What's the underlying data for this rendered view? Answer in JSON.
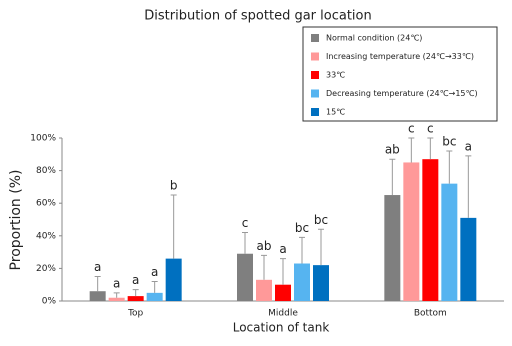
{
  "chart_data": {
    "type": "bar",
    "title": "Distribution of spotted gar location",
    "x_label": "Location of tank",
    "y_label": "Proportion (%)",
    "categories": [
      "Top",
      "Middle",
      "Bottom"
    ],
    "ylim": [
      0,
      100
    ],
    "yticks": [
      {
        "value": 0,
        "label": "0%"
      },
      {
        "value": 20,
        "label": "20%"
      },
      {
        "value": 40,
        "label": "40%"
      },
      {
        "value": 60,
        "label": "60%"
      },
      {
        "value": 80,
        "label": "80%"
      },
      {
        "value": 100,
        "label": "100%"
      }
    ],
    "series": [
      {
        "name": "Normal condition (24℃)",
        "color": "#7f7f7f",
        "values": [
          6,
          29,
          65
        ],
        "errors": [
          9,
          13,
          22
        ],
        "letters": [
          "a",
          "c",
          "ab"
        ]
      },
      {
        "name": "Increasing temperature (24℃→33℃)",
        "color": "#ff9999",
        "values": [
          2,
          13,
          85
        ],
        "errors": [
          3,
          15,
          15
        ],
        "letters": [
          "a",
          "ab",
          "c"
        ]
      },
      {
        "name": "33℃",
        "color": "#ff0000",
        "values": [
          3,
          10,
          87
        ],
        "errors": [
          4,
          16,
          13
        ],
        "letters": [
          "a",
          "a",
          "c"
        ]
      },
      {
        "name": "Decreasing temperature (24℃→15℃)",
        "color": "#56b4f0",
        "values": [
          5,
          23,
          72
        ],
        "errors": [
          7,
          16,
          20
        ],
        "letters": [
          "a",
          "bc",
          "bc"
        ]
      },
      {
        "name": "15℃",
        "color": "#0070c0",
        "values": [
          26,
          22,
          51
        ],
        "errors": [
          39,
          22,
          38
        ],
        "letters": [
          "b",
          "bc",
          "a"
        ]
      }
    ]
  }
}
